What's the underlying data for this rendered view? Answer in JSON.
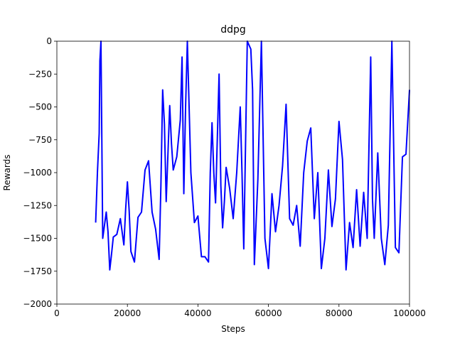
{
  "chart_data": {
    "type": "line",
    "title": "ddpg",
    "xlabel": "Steps",
    "ylabel": "Rewards",
    "xlim": [
      0,
      100000
    ],
    "xticks": [
      0,
      20000,
      40000,
      60000,
      80000,
      100000
    ],
    "ylim": [
      -2000,
      0
    ],
    "yticks": [
      {
        "value": -2000,
        "label": "−2000"
      },
      {
        "value": -1750,
        "label": "−1750"
      },
      {
        "value": -1500,
        "label": "−1500"
      },
      {
        "value": -1250,
        "label": "−1250"
      },
      {
        "value": -1000,
        "label": "−1000"
      },
      {
        "value": -750,
        "label": "−750"
      },
      {
        "value": -500,
        "label": "−500"
      },
      {
        "value": -250,
        "label": "−250"
      },
      0
    ],
    "series": [
      {
        "color": "#0000ff",
        "x": [
          11000,
          11500,
          12000,
          12200,
          12500,
          13000,
          13500,
          14000,
          14500,
          15000,
          15500,
          16000,
          17000,
          18000,
          19000,
          19500,
          20000,
          20500,
          21000,
          22000,
          23000,
          24000,
          25000,
          26000,
          27000,
          28000,
          29000,
          29500,
          30000,
          30500,
          31000,
          32000,
          32500,
          33000,
          34000,
          35000,
          35500,
          36000,
          36500,
          37000,
          37500,
          38000,
          39000,
          40000,
          41000,
          42000,
          43000,
          43500,
          44000,
          44500,
          45000,
          46000,
          46500,
          47000,
          47500,
          48000,
          49000,
          50000,
          51000,
          52000,
          52500,
          53000,
          54000,
          55000,
          55500,
          56000,
          57000,
          58000,
          59000,
          60000,
          60500,
          61000,
          62000,
          63000,
          64000,
          65000,
          66000,
          67000,
          68000,
          69000,
          70000,
          71000,
          72000,
          73000,
          74000,
          75000,
          76000,
          77000,
          78000,
          79000,
          80000,
          81000,
          82000,
          83000,
          84000,
          85000,
          86000,
          87000,
          88000,
          89000,
          89500,
          90000,
          91000,
          92000,
          93000,
          94000,
          95000,
          96000,
          97000,
          98000,
          99000,
          100000
        ],
        "values": [
          -1380,
          -1000,
          -700,
          -150,
          0,
          -1500,
          -1400,
          -1300,
          -1450,
          -1740,
          -1620,
          -1490,
          -1470,
          -1350,
          -1550,
          -1280,
          -1070,
          -1290,
          -1600,
          -1680,
          -1340,
          -1300,
          -980,
          -910,
          -1300,
          -1430,
          -1660,
          -1100,
          -370,
          -630,
          -1220,
          -490,
          -780,
          -980,
          -880,
          -600,
          -120,
          -1160,
          -500,
          0,
          -500,
          -1000,
          -1380,
          -1330,
          -1640,
          -1640,
          -1680,
          -1000,
          -620,
          -1000,
          -1230,
          -250,
          -1100,
          -1420,
          -1220,
          -960,
          -1120,
          -1350,
          -1000,
          -500,
          -1000,
          -1580,
          0,
          -60,
          -370,
          -1700,
          -1050,
          0,
          -1500,
          -1730,
          -1450,
          -1160,
          -1450,
          -1250,
          -950,
          -480,
          -1350,
          -1400,
          -1250,
          -1560,
          -1000,
          -760,
          -660,
          -1350,
          -1000,
          -1730,
          -1500,
          -980,
          -1410,
          -1200,
          -610,
          -900,
          -1740,
          -1380,
          -1570,
          -1130,
          -1560,
          -1150,
          -1500,
          -120,
          -1200,
          -1500,
          -850,
          -1500,
          -1700,
          -1400,
          0,
          -1570,
          -1610,
          -880,
          -860,
          -370
        ]
      }
    ]
  }
}
